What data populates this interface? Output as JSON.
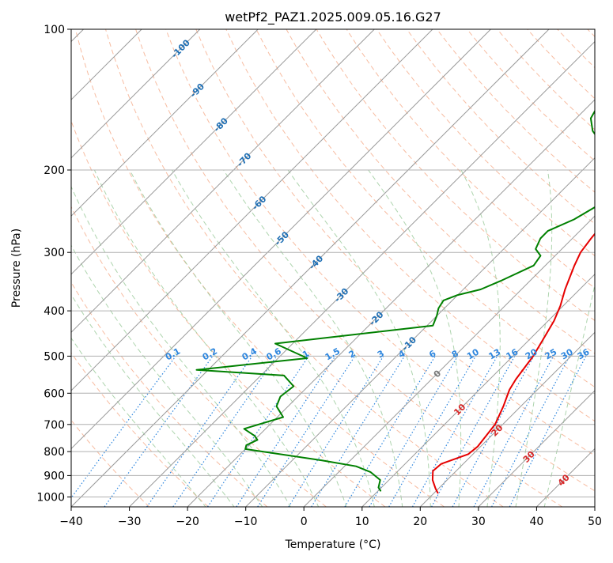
{
  "chart_data": {
    "type": "line",
    "title": "wetPf2_PAZ1.2025.009.05.16.G27",
    "xlabel": "Temperature (°C)",
    "ylabel": "Pressure (hPa)",
    "xlim": [
      -40,
      50
    ],
    "ylim": [
      1050,
      100
    ],
    "y_scale": "log",
    "grid": true,
    "x_ticks": [
      "−40",
      "−30",
      "−20",
      "−10",
      "0",
      "10",
      "20",
      "30",
      "40",
      "50"
    ],
    "y_ticks": [
      "100",
      "200",
      "300",
      "400",
      "500",
      "600",
      "700",
      "800",
      "900",
      "1000"
    ],
    "colors": {
      "temperature": "#e60000",
      "dewpoint": "#008000",
      "dry_adiabat": "#f4a582",
      "moist_adiabat": "#98c998",
      "mixing_ratio": "#2e86de",
      "isotherm": "#999999",
      "isotherm_labels": "#1f6fb4",
      "warm_labels": "#d62728"
    },
    "series": [
      {
        "key": "temperature",
        "points": [
          [
            20.6,
            980
          ],
          [
            19.5,
            960
          ],
          [
            17.5,
            920
          ],
          [
            16.0,
            880
          ],
          [
            16.2,
            850
          ],
          [
            19.2,
            810
          ],
          [
            19.5,
            780
          ],
          [
            18.7,
            700
          ],
          [
            17.0,
            640
          ],
          [
            15.2,
            590
          ],
          [
            14.5,
            560
          ],
          [
            13.5,
            500
          ],
          [
            12.0,
            450
          ],
          [
            11.0,
            420
          ],
          [
            9.5,
            390
          ],
          [
            7.5,
            360
          ],
          [
            5.0,
            320
          ],
          [
            3.8,
            300
          ],
          [
            3.2,
            280
          ],
          [
            2.5,
            250
          ],
          [
            0.5,
            220
          ],
          [
            -1.5,
            205
          ],
          [
            -2.0,
            190
          ],
          [
            0.5,
            180
          ],
          [
            4.5,
            175
          ],
          [
            5.0,
            160
          ],
          [
            4.0,
            140
          ],
          [
            4.5,
            125
          ],
          [
            5.5,
            115
          ],
          [
            5.5,
            100
          ]
        ]
      },
      {
        "key": "dewpoint",
        "points": [
          [
            10.4,
            970
          ],
          [
            9.5,
            955
          ],
          [
            8.5,
            920
          ],
          [
            5.5,
            885
          ],
          [
            2.0,
            860
          ],
          [
            -5.0,
            835
          ],
          [
            -20.0,
            790
          ],
          [
            -20.5,
            775
          ],
          [
            -19.5,
            755
          ],
          [
            -20.7,
            740
          ],
          [
            -23.7,
            715
          ],
          [
            -19.0,
            675
          ],
          [
            -22.0,
            640
          ],
          [
            -23.0,
            610
          ],
          [
            -22.5,
            580
          ],
          [
            -26.0,
            550
          ],
          [
            -42.0,
            535
          ],
          [
            -25.0,
            505
          ],
          [
            -33.0,
            470
          ],
          [
            -9.0,
            430
          ],
          [
            -10.0,
            410
          ],
          [
            -11.0,
            395
          ],
          [
            -11.5,
            380
          ],
          [
            -10.0,
            370
          ],
          [
            -7.0,
            360
          ],
          [
            -5.0,
            345
          ],
          [
            -2.0,
            320
          ],
          [
            -2.5,
            305
          ],
          [
            -4.5,
            295
          ],
          [
            -5.5,
            280
          ],
          [
            -5.5,
            270
          ],
          [
            -3.0,
            255
          ],
          [
            -1.5,
            240
          ],
          [
            -2.5,
            225
          ],
          [
            -4.0,
            210
          ],
          [
            -7.0,
            190
          ],
          [
            -11.5,
            175
          ],
          [
            -15.0,
            165
          ],
          [
            -17.5,
            155
          ],
          [
            -18.5,
            145
          ],
          [
            -19.0,
            135
          ],
          [
            -20.0,
            125
          ],
          [
            -21.0,
            115
          ],
          [
            -23.5,
            105
          ],
          [
            -25.5,
            100
          ]
        ]
      }
    ],
    "isotherm_labels": [
      "-100",
      "-90",
      "-80",
      "-70",
      "-60",
      "-50",
      "-40",
      "-30",
      "-20",
      "-10",
      "0",
      "10",
      "20",
      "30",
      "40"
    ],
    "mixing_ratio_labels": [
      "0.1",
      "0.2",
      "0.4",
      "0.6",
      "1",
      "1.5",
      "2",
      "3",
      "4",
      "6",
      "8",
      "10",
      "13",
      "16",
      "20",
      "25",
      "30",
      "36"
    ],
    "mixing_ratio_values": [
      0.1,
      0.2,
      0.4,
      0.6,
      1,
      1.5,
      2,
      3,
      4,
      6,
      8,
      10,
      13,
      16,
      20,
      25,
      30,
      36
    ]
  }
}
